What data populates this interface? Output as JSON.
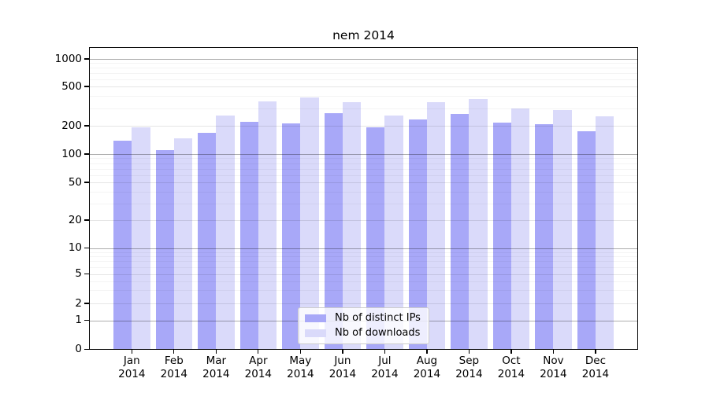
{
  "chart_data": {
    "type": "bar",
    "title": "nem 2014",
    "months": [
      "Jan",
      "Feb",
      "Mar",
      "Apr",
      "May",
      "Jun",
      "Jul",
      "Aug",
      "Sep",
      "Oct",
      "Nov",
      "Dec"
    ],
    "year": "2014",
    "series": [
      {
        "name": "Nb of distinct IPs",
        "color": "#a8a8f8",
        "values": [
          139,
          110,
          167,
          220,
          210,
          270,
          192,
          233,
          264,
          216,
          206,
          176
        ]
      },
      {
        "name": "Nb of downloads",
        "color": "#dadafa",
        "values": [
          192,
          147,
          254,
          353,
          387,
          344,
          254,
          344,
          373,
          300,
          287,
          248
        ]
      }
    ],
    "y_ticks": [
      0,
      1,
      2,
      5,
      10,
      20,
      50,
      100,
      200,
      500,
      1000
    ],
    "y_scale": "symlog",
    "ylim": [
      0,
      1350
    ],
    "xlabel": "",
    "ylabel": "",
    "grid": true,
    "legend_position": "lower center",
    "grid_colors": {
      "decade_line": "rgba(0,0,0,0.32)",
      "labeled_line": "rgba(0,0,0,0.10)",
      "minor_line": "rgba(0,0,0,0.045)"
    },
    "axis_color": "#000000",
    "background_color": "#ffffff"
  }
}
